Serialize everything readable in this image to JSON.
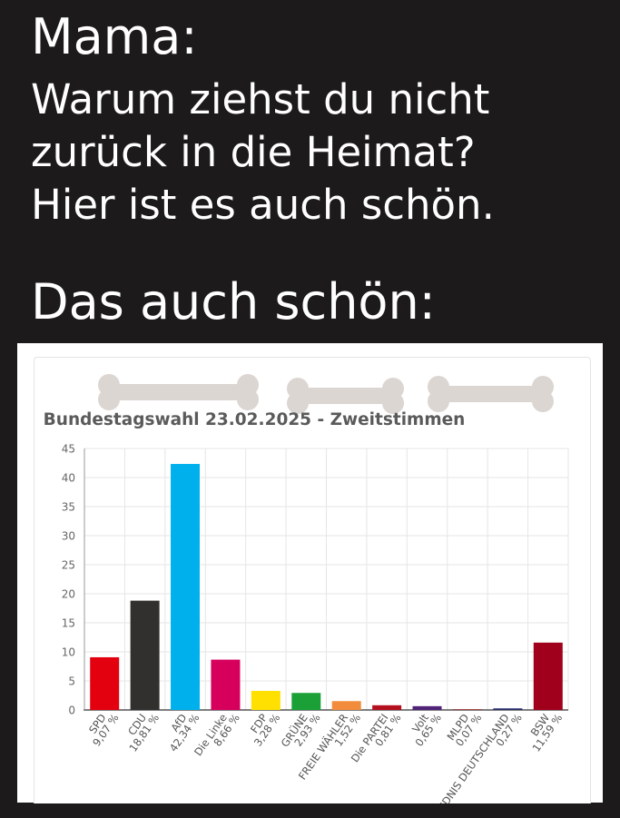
{
  "meme": {
    "title": "Mama:",
    "line1": "Warum ziehst du nicht",
    "line2": "zurück in die Heimat?",
    "line3": "Hier ist es auch schön.",
    "line4": "Das auch schön:"
  },
  "chart_data": {
    "type": "bar",
    "title": "Bundestagswahl 23.02.2025  - Zweitstimmen",
    "xlabel": "",
    "ylabel": "",
    "ylim": [
      0,
      45
    ],
    "yticks": [
      "0",
      "5",
      "10",
      "15",
      "20",
      "25",
      "30",
      "35",
      "40",
      "45"
    ],
    "grid": true,
    "categories": [
      "SPD",
      "CDU",
      "AfD",
      "Die Linke",
      "FDP",
      "GRÜNE",
      "FREIE WÄHLER",
      "Die PARTEI",
      "Volt",
      "MLPD",
      "BÜNDNIS DEUTSCHLAND",
      "BSW"
    ],
    "value_labels": [
      "9,07 %",
      "18,81 %",
      "42,34 %",
      "8,66 %",
      "3,28 %",
      "2,93 %",
      "1,52 %",
      "0,81 %",
      "0,65 %",
      "0,07 %",
      "0,27 %",
      "11,59 %"
    ],
    "values": [
      9.07,
      18.81,
      42.34,
      8.66,
      3.28,
      2.93,
      1.52,
      0.81,
      0.65,
      0.07,
      0.27,
      11.59
    ],
    "colors": [
      "#e3000f",
      "#32302e",
      "#00b0ec",
      "#d6005c",
      "#ffe000",
      "#1aa037",
      "#f28c3c",
      "#b5101f",
      "#502379",
      "#9a2a2a",
      "#262a6a",
      "#a0001c"
    ],
    "redaction_color": "#dcd6d2"
  }
}
